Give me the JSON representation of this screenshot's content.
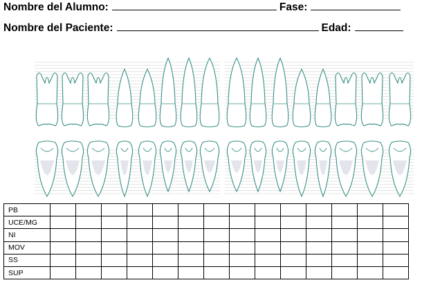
{
  "header": {
    "student_label": "Nombre del Alumno:",
    "phase_label": "Fase:",
    "patient_label": "Nombre del Paciente:",
    "age_label": "Edad:"
  },
  "perio_table": {
    "rows": [
      "PB",
      "UCE/MG",
      "NI",
      "MOV",
      "SS",
      "SUP"
    ],
    "columns_per_row": 14
  },
  "colors": {
    "tooth_outline": "#3a8f86",
    "root_fill": "#d9d9e6",
    "guide_lines": "#c9c9c9",
    "text": "#000000"
  }
}
